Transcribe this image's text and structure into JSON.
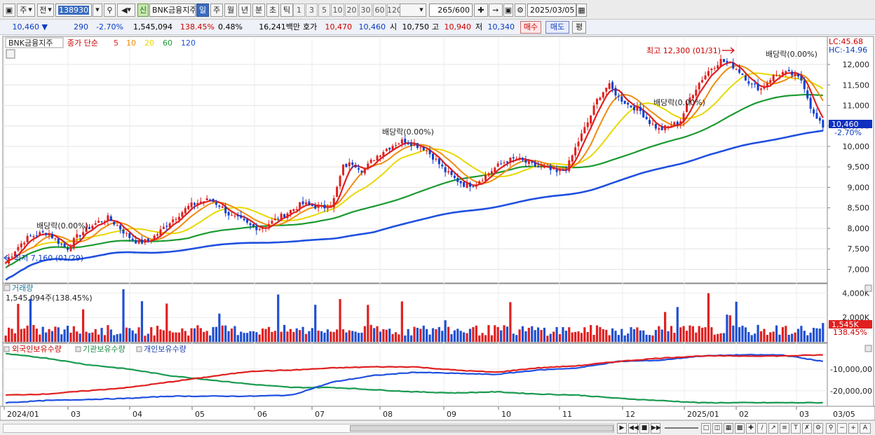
{
  "toolbar": {
    "period_label": "주",
    "prev_label": "전",
    "code_value": "138930",
    "stock_name": "BNK금융지주",
    "new_badge": "신",
    "tf_buttons": [
      "일",
      "주",
      "월",
      "년",
      "분",
      "초",
      "틱"
    ],
    "tf_selected": "일",
    "num_buttons": [
      "1",
      "3",
      "5",
      "10",
      "20",
      "30",
      "60",
      "120"
    ],
    "count_value": "265",
    "count_total": "/600",
    "date_value": "2025/03/05"
  },
  "info": {
    "price": "10,460",
    "change": "290",
    "change_pct": "-2.70%",
    "volume": "1,545,094",
    "volume_ratio": "138.45%",
    "turnover": "0.48%",
    "amount": "16,241백만",
    "ask_label": "호가",
    "ask1": "10,470",
    "bid1": "10,460",
    "open_label": "시",
    "open": "10,750",
    "high_label": "고",
    "high": "10,940",
    "low_label": "저",
    "low": "10,340",
    "buy_label": "매수",
    "sell_label": "매도",
    "eval_label": "평"
  },
  "price_panel": {
    "stock_name": "BNK금융지주",
    "legend_prefix": "종가 단순",
    "ma_periods": [
      "5",
      "10",
      "20",
      "60",
      "120"
    ],
    "ma_colors": [
      "#e02020",
      "#f08c10",
      "#e8d800",
      "#1a9a30",
      "#2050e0"
    ],
    "lc_label": "LC:45.68",
    "hc_label": "HC:-14.96",
    "current_price_tag": "10,460",
    "current_change_tag": "-2.70%",
    "high_annotation": "최고 12,300 (01/31)",
    "low_annotation": "최저 7,160 (01/29)",
    "dividend_label": "배당락(0.00%)"
  },
  "volume_panel": {
    "title": "거래량",
    "value_label": "1,545,094주(138.45%)",
    "current_tag": "1,545K",
    "current_pct": "138.45%"
  },
  "holding_panel": {
    "legend": [
      "외국인보유수량",
      "기관보유수량",
      "개인보유수량"
    ],
    "colors": [
      "#e02020",
      "#1a9a50",
      "#2050e0"
    ]
  },
  "x_axis": [
    "2024/01",
    "03",
    "04",
    "05",
    "06",
    "07",
    "08",
    "09",
    "10",
    "11",
    "12",
    "2025/01",
    "02",
    "03",
    "03/05"
  ],
  "chart_data": [
    {
      "type": "candlestick",
      "title": "BNK금융지주",
      "y_ticks": [
        7000,
        7500,
        8000,
        8500,
        9000,
        9500,
        10000,
        10500,
        11000,
        11500,
        12000
      ],
      "ylim": [
        6700,
        12650
      ],
      "x_labels": [
        "2024/01",
        "03",
        "04",
        "05",
        "06",
        "07",
        "08",
        "09",
        "10",
        "11",
        "12",
        "2025/01",
        "02",
        "03"
      ],
      "close_path": [
        7160,
        7500,
        7750,
        7850,
        7900,
        7700,
        7500,
        7800,
        8000,
        8150,
        8250,
        8050,
        7800,
        7650,
        7700,
        7900,
        8150,
        8350,
        8550,
        8650,
        8700,
        8550,
        8300,
        8200,
        8050,
        8000,
        8150,
        8300,
        8450,
        8600,
        8550,
        8500,
        8600,
        9500,
        9600,
        9400,
        9700,
        9900,
        10050,
        10150,
        10050,
        9950,
        9700,
        9400,
        9200,
        9050,
        9100,
        9300,
        9500,
        9650,
        9700,
        9600,
        9500,
        9450,
        9350,
        9500,
        10100,
        10600,
        11200,
        11500,
        11200,
        11000,
        10900,
        10600,
        10400,
        10500,
        10600,
        11200,
        11600,
        11900,
        12100,
        12000,
        11800,
        11500,
        11400,
        11700,
        11800,
        11750,
        11600,
        10800,
        10460
      ],
      "dividend_dates": [
        "2024/02",
        "2024/08",
        "2024/11",
        "2025/02"
      ],
      "annotations": [
        "최고 12,300 (01/31)",
        "최저 7,160 (01/29)"
      ]
    },
    {
      "type": "bar",
      "title": "거래량",
      "y_ticks": [
        "2,000K",
        "4,000K"
      ],
      "latest_value": 1545094
    },
    {
      "type": "line",
      "y_ticks": [
        "-10,000,00",
        "-20,000,00"
      ],
      "series": [
        {
          "name": "외국인보유수량",
          "values": [
            -22000000,
            -21500000,
            -20000000,
            -18500000,
            -16000000,
            -13500000,
            -11000000,
            -10500000,
            -9500000,
            -9000000,
            -9000000,
            -10500000,
            -11500000,
            -9500000,
            -8500000,
            -6500000,
            -5000000,
            -4000000,
            -4000000,
            -4000000,
            -3500000
          ]
        },
        {
          "name": "기관보유수량",
          "values": [
            -3000000,
            -5000000,
            -8000000,
            -10000000,
            -13000000,
            -15000000,
            -17000000,
            -18500000,
            -18500000,
            -19500000,
            -20500000,
            -21000000,
            -20500000,
            -21500000,
            -22000000,
            -23500000,
            -24500000,
            -25500000,
            -25500000,
            -25500000,
            -25500000
          ]
        },
        {
          "name": "개인보유수량",
          "values": [
            -25500000,
            -24500000,
            -24000000,
            -23500000,
            -22500000,
            -22500000,
            -22500000,
            -22000000,
            -16000000,
            -13000000,
            -11500000,
            -12000000,
            -12500000,
            -10500000,
            -9500000,
            -6500000,
            -6000000,
            -4000000,
            -3500000,
            -3500000,
            -6500000
          ]
        }
      ]
    }
  ]
}
